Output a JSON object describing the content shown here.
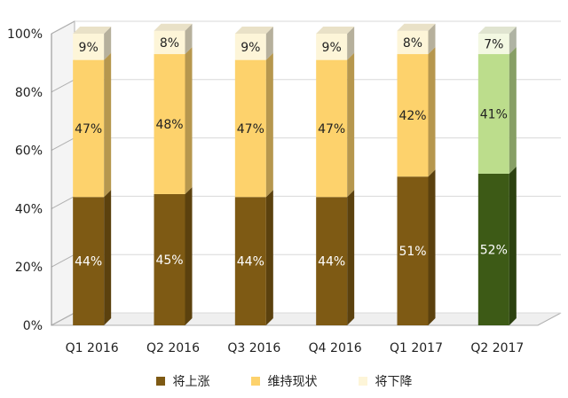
{
  "chart_data": {
    "type": "bar",
    "stacked": true,
    "three_d": true,
    "categories": [
      "Q1 2016",
      "Q2 2016",
      "Q3 2016",
      "Q4 2016",
      "Q1 2017",
      "Q2 2017"
    ],
    "series": [
      {
        "name": "将上涨",
        "values": [
          44,
          45,
          44,
          44,
          51,
          52
        ],
        "labels": [
          "44%",
          "45%",
          "44%",
          "44%",
          "51%",
          "52%"
        ],
        "color": "#7e5a14"
      },
      {
        "name": "维持现状",
        "values": [
          47,
          48,
          47,
          47,
          42,
          41
        ],
        "labels": [
          "47%",
          "48%",
          "47%",
          "47%",
          "42%",
          "41%"
        ],
        "color": "#fdd26c"
      },
      {
        "name": "将下降",
        "values": [
          9,
          8,
          9,
          9,
          8,
          7
        ],
        "labels": [
          "9%",
          "8%",
          "9%",
          "9%",
          "8%",
          "7%"
        ],
        "color": "#fdf5d8"
      }
    ],
    "highlight": {
      "category": "Q2 2017",
      "colors": [
        "#3d5a16",
        "#bcdd8c",
        "#f3f8e2"
      ]
    },
    "yticks": [
      "0%",
      "20%",
      "40%",
      "60%",
      "80%",
      "100%"
    ],
    "ylim": [
      0,
      100
    ],
    "legend_position": "bottom"
  },
  "legend": {
    "items": [
      "将上涨",
      "维持现状",
      "将下降"
    ]
  }
}
